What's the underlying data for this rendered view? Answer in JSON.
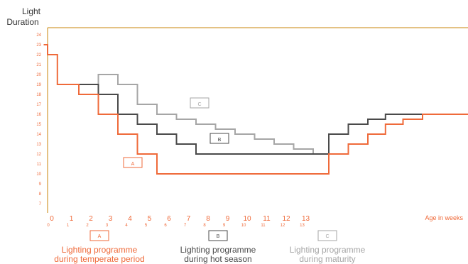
{
  "chart_data": {
    "type": "line",
    "step": true,
    "ylabel_line1": "Light",
    "ylabel_line2": "Duration",
    "xlabel": "Age in weeks",
    "ylim": [
      6,
      25
    ],
    "xlim": [
      0,
      22
    ],
    "grid": false,
    "y_ticks": [
      "7",
      "8",
      "9",
      "10",
      "11",
      "12",
      "13",
      "14",
      "15",
      "16",
      "17",
      "18",
      "19",
      "20",
      "21",
      "22",
      "23",
      "24"
    ],
    "x_major_ticks": [
      "0",
      "1",
      "2",
      "3",
      "4",
      "5",
      "6",
      "7",
      "8",
      "9",
      "10",
      "11",
      "12",
      "13"
    ],
    "x_minor_ticks": [
      "0",
      "1",
      "2",
      "3",
      "4",
      "5",
      "6",
      "7",
      "8",
      "9",
      "10",
      "11",
      "12",
      "13"
    ],
    "series": [
      {
        "key": "A",
        "label": "A",
        "color": "#ef6a3a",
        "points": [
          [
            -0.2,
            23
          ],
          [
            0,
            23
          ],
          [
            0,
            22
          ],
          [
            0.5,
            22
          ],
          [
            0.5,
            19
          ],
          [
            1.6,
            19
          ],
          [
            1.6,
            18
          ],
          [
            2.6,
            18
          ],
          [
            2.6,
            16
          ],
          [
            3.6,
            16
          ],
          [
            3.6,
            14
          ],
          [
            4.6,
            14
          ],
          [
            4.6,
            12
          ],
          [
            5.6,
            12
          ],
          [
            5.6,
            10
          ],
          [
            14.4,
            10
          ],
          [
            14.4,
            12
          ],
          [
            15.4,
            12
          ],
          [
            15.4,
            13
          ],
          [
            16.4,
            13
          ],
          [
            16.4,
            14
          ],
          [
            17.3,
            14
          ],
          [
            17.3,
            15
          ],
          [
            18.2,
            15
          ],
          [
            18.2,
            15.5
          ],
          [
            19.2,
            15.5
          ],
          [
            19.2,
            16
          ],
          [
            22,
            16
          ]
        ],
        "legend_line1": "Lighting programme",
        "legend_line2": "during temperate period"
      },
      {
        "key": "B",
        "label": "B",
        "color": "#4a4a4a",
        "points": [
          [
            1.6,
            19
          ],
          [
            2.6,
            19
          ],
          [
            2.6,
            18
          ],
          [
            3.6,
            18
          ],
          [
            3.6,
            16
          ],
          [
            4.6,
            16
          ],
          [
            4.6,
            15
          ],
          [
            5.6,
            15
          ],
          [
            5.6,
            14
          ],
          [
            6.6,
            14
          ],
          [
            6.6,
            13
          ],
          [
            7.6,
            13
          ],
          [
            7.6,
            12
          ],
          [
            14.4,
            12
          ],
          [
            14.4,
            14
          ],
          [
            15.4,
            14
          ],
          [
            15.4,
            15
          ],
          [
            16.4,
            15
          ],
          [
            16.4,
            15.5
          ],
          [
            17.3,
            15.5
          ],
          [
            17.3,
            16
          ],
          [
            19.2,
            16
          ]
        ],
        "legend_line1": "Lighting programme",
        "legend_line2": "during hot season"
      },
      {
        "key": "C",
        "label": "C",
        "color": "#a6a6a6",
        "points": [
          [
            2.6,
            19
          ],
          [
            2.6,
            20
          ],
          [
            3.6,
            20
          ],
          [
            3.6,
            19
          ],
          [
            4.6,
            19
          ],
          [
            4.6,
            17
          ],
          [
            5.6,
            17
          ],
          [
            5.6,
            16
          ],
          [
            6.6,
            16
          ],
          [
            6.6,
            15.5
          ],
          [
            7.6,
            15.5
          ],
          [
            7.6,
            15
          ],
          [
            8.6,
            15
          ],
          [
            8.6,
            14.5
          ],
          [
            9.6,
            14.5
          ],
          [
            9.6,
            14
          ],
          [
            10.6,
            14
          ],
          [
            10.6,
            13.5
          ],
          [
            11.6,
            13.5
          ],
          [
            11.6,
            13
          ],
          [
            12.6,
            13
          ],
          [
            12.6,
            12.5
          ],
          [
            13.6,
            12.5
          ],
          [
            13.6,
            12
          ]
        ],
        "legend_line1": "Lighting programme",
        "legend_line2": "during maturity"
      }
    ],
    "colors": {
      "axis": "#c8860a",
      "tick_text": "#ef6a3a"
    }
  }
}
